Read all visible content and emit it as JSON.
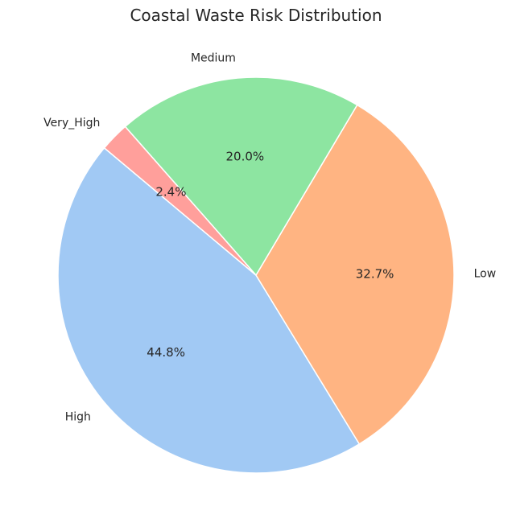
{
  "chart_data": {
    "type": "pie",
    "title": "Coastal Waste Risk Distribution",
    "categories": [
      "High",
      "Low",
      "Medium",
      "Very_High"
    ],
    "values": [
      44.8,
      32.7,
      20.0,
      2.4
    ],
    "percent_labels": [
      "44.8%",
      "32.7%",
      "20.0%",
      "2.4%"
    ],
    "colors": [
      "#a1c9f4",
      "#ffb482",
      "#8de5a1",
      "#ff9f9b"
    ],
    "start_angle_deg": 140,
    "direction": "counterclockwise",
    "legend": "none"
  }
}
